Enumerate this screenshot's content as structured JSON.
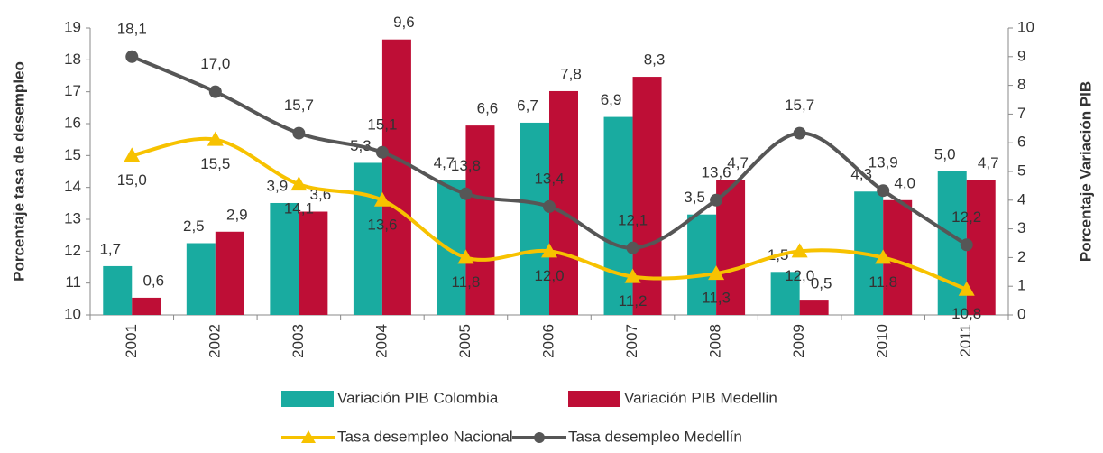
{
  "chart_data": {
    "type": "bar",
    "categories": [
      "2001",
      "2002",
      "2003",
      "2004",
      "2005",
      "2006",
      "2007",
      "2008",
      "2009",
      "2010",
      "2011"
    ],
    "ylabel": "Porcentaje tasa de desempleo",
    "y2label": "Porcentaje Variación PIB",
    "ylim": [
      10,
      19
    ],
    "yticks": [
      10,
      11,
      12,
      13,
      14,
      15,
      16,
      17,
      18,
      19
    ],
    "y2lim": [
      0,
      10
    ],
    "y2ticks": [
      0,
      1,
      2,
      3,
      4,
      5,
      6,
      7,
      8,
      9,
      10
    ],
    "series": [
      {
        "name": "Variación PIB Colombia",
        "type": "bar",
        "axis": "y2",
        "color": "#19aba0",
        "values": [
          1.7,
          2.5,
          3.9,
          5.3,
          4.7,
          6.7,
          6.9,
          3.5,
          1.5,
          4.3,
          5.0
        ],
        "value_labels": [
          "1,7",
          "2,5",
          "3,9",
          "5,3",
          "4,7",
          "6,7",
          "6,9",
          "3,5",
          "1,5",
          "4,3",
          "5,0"
        ]
      },
      {
        "name": "Variación PIB Medellin",
        "type": "bar",
        "axis": "y2",
        "color": "#be0e36",
        "values": [
          0.6,
          2.9,
          3.6,
          9.6,
          6.6,
          7.8,
          8.3,
          4.7,
          0.5,
          4.0,
          4.7
        ],
        "value_labels": [
          "0,6",
          "2,9",
          "3,6",
          "9,6",
          "6,6",
          "7,8",
          "8,3",
          "4,7",
          "0,5",
          "4,0",
          "4,7"
        ]
      },
      {
        "name": "Tasa desempleo Nacional",
        "type": "line",
        "marker": "triangle",
        "color": "#f7c200",
        "values": [
          15.0,
          15.5,
          14.1,
          13.6,
          11.8,
          12.0,
          11.2,
          11.3,
          12.0,
          11.8,
          10.8
        ],
        "value_labels": [
          "15,0",
          "15,5",
          "14,1",
          "13,6",
          "11,8",
          "12,0",
          "11,2",
          "11,3",
          "12,0",
          "11,8",
          "10,8"
        ]
      },
      {
        "name": "Tasa desempleo Medellín",
        "type": "line",
        "marker": "circle",
        "color": "#565656",
        "values": [
          18.1,
          17.0,
          15.7,
          15.1,
          13.8,
          13.4,
          12.1,
          13.6,
          15.7,
          13.9,
          12.2
        ],
        "value_labels": [
          "18,1",
          "17,0",
          "15,7",
          "15,1",
          "13,8",
          "13,4",
          "12,1",
          "13,6",
          "15,7",
          "13,9",
          "12,2"
        ]
      }
    ]
  }
}
